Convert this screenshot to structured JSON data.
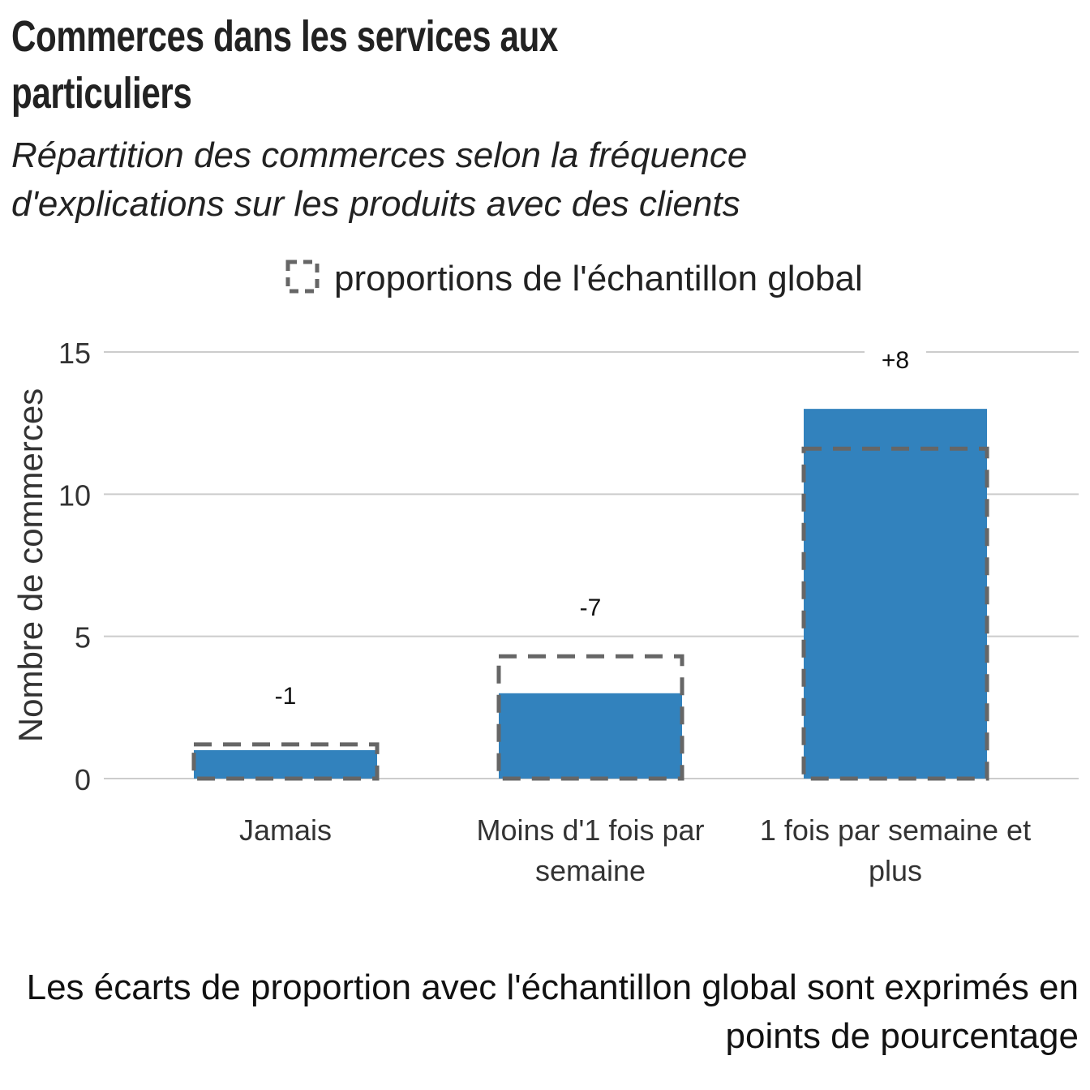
{
  "title": "Commerces dans les services aux particuliers",
  "subtitle": "Répartition des commerces selon la fréquence d'explications sur les produits avec des clients",
  "caption": "Les écarts de proportion avec l'échantillon global sont exprimés en points de pourcentage",
  "legend": {
    "label": "proportions de l'échantillon global"
  },
  "colors": {
    "bar": "#3282bd",
    "reference": "#666666",
    "grid": "#cccccc"
  },
  "chart_data": {
    "type": "bar",
    "categories": [
      "Jamais",
      "Moins d'1 fois par semaine",
      "1 fois par semaine et plus"
    ],
    "category_lines": [
      [
        "Jamais"
      ],
      [
        "Moins d'1 fois par",
        "semaine"
      ],
      [
        "1 fois par semaine et",
        "plus"
      ]
    ],
    "series": [
      {
        "values": [
          1,
          3,
          13
        ]
      },
      {
        "name": "proportions de l'échantillon global",
        "values": [
          1.2,
          4.3,
          11.6
        ],
        "style": "dashed-outline"
      }
    ],
    "data_labels": [
      "-1",
      "-7",
      "+8"
    ],
    "xlabel": "",
    "ylabel": "Nombre de commerces",
    "ylim": [
      0,
      15
    ],
    "yticks": [
      0,
      5,
      10,
      15
    ],
    "grid": "horizontal",
    "legend_position": "top"
  }
}
